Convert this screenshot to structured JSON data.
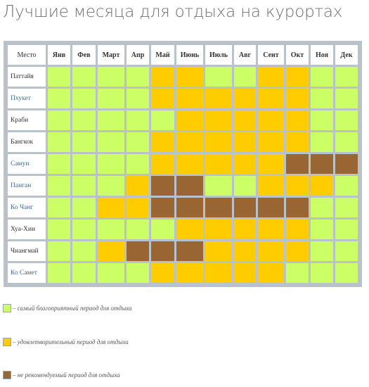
{
  "page": {
    "title": "Лучшие месяца для отдыха на курортах"
  },
  "chart_data": {
    "type": "heatmap",
    "corner_label": "Место",
    "columns": [
      "Янв",
      "Фев",
      "Март",
      "Апр",
      "Май",
      "Июнь",
      "Июль",
      "Авг",
      "Сент",
      "Окт",
      "Ноя",
      "Дек"
    ],
    "rows": [
      {
        "name": "Паттайя",
        "link": false,
        "values": [
          1,
          1,
          1,
          1,
          2,
          2,
          1,
          1,
          2,
          2,
          1,
          1
        ]
      },
      {
        "name": "Пхукет",
        "link": true,
        "values": [
          1,
          1,
          1,
          1,
          2,
          2,
          2,
          2,
          2,
          2,
          1,
          1
        ]
      },
      {
        "name": "Краби",
        "link": false,
        "values": [
          1,
          1,
          1,
          1,
          1,
          2,
          2,
          2,
          2,
          2,
          1,
          1
        ]
      },
      {
        "name": "Бангкок",
        "link": false,
        "values": [
          1,
          1,
          1,
          1,
          2,
          2,
          2,
          2,
          2,
          2,
          1,
          1
        ]
      },
      {
        "name": "Самуи",
        "link": true,
        "values": [
          1,
          1,
          1,
          1,
          2,
          2,
          2,
          2,
          2,
          3,
          3,
          3
        ]
      },
      {
        "name": "Панган",
        "link": true,
        "values": [
          1,
          1,
          1,
          2,
          3,
          3,
          1,
          1,
          2,
          2,
          2,
          1
        ]
      },
      {
        "name": "Ко Чанг",
        "link": true,
        "values": [
          1,
          1,
          2,
          2,
          3,
          3,
          3,
          3,
          3,
          3,
          1,
          1
        ]
      },
      {
        "name": "Хуа-Хин",
        "link": false,
        "values": [
          1,
          1,
          1,
          1,
          1,
          2,
          2,
          2,
          2,
          2,
          1,
          1
        ]
      },
      {
        "name": "Чиангмай",
        "link": false,
        "values": [
          1,
          1,
          2,
          3,
          3,
          3,
          2,
          2,
          2,
          2,
          1,
          1
        ]
      },
      {
        "name": "Ко Самет",
        "link": true,
        "values": [
          1,
          1,
          1,
          1,
          2,
          2,
          2,
          2,
          2,
          1,
          1,
          1
        ]
      }
    ],
    "colors": {
      "1": "#ccff66",
      "2": "#ffcc00",
      "3": "#996633"
    },
    "legend": [
      {
        "level": 1,
        "label": "– самый благоприятный период для отдыха"
      },
      {
        "level": 2,
        "label": "– удовлетворительный период для отдыха"
      },
      {
        "level": 3,
        "label": "– не рекомендуемый период для отдыха"
      }
    ],
    "legend_position": "bottom-left"
  }
}
